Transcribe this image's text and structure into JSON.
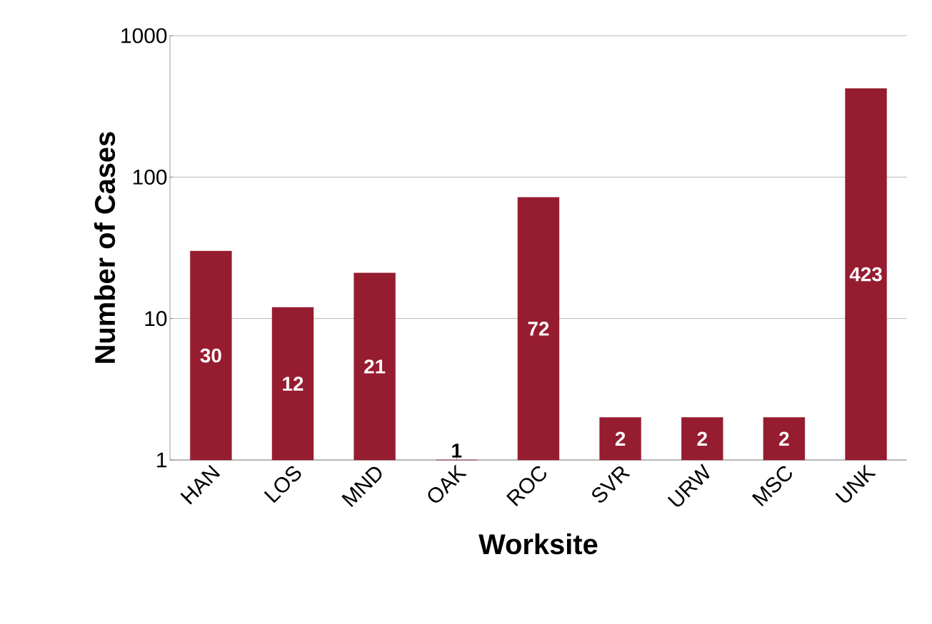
{
  "chart_data": {
    "type": "bar",
    "xlabel": "Worksite",
    "ylabel": "Number of Cases",
    "categories": [
      "HAN",
      "LOS",
      "MND",
      "OAK",
      "ROC",
      "SVR",
      "URW",
      "MSC",
      "UNK"
    ],
    "values": [
      30,
      12,
      21,
      1,
      72,
      2,
      2,
      2,
      423
    ],
    "color": "#961c30",
    "log": true,
    "ylim": [
      1,
      1000
    ],
    "yticks": [
      1,
      10,
      100,
      1000
    ],
    "grid": "y",
    "data_labels": true
  }
}
